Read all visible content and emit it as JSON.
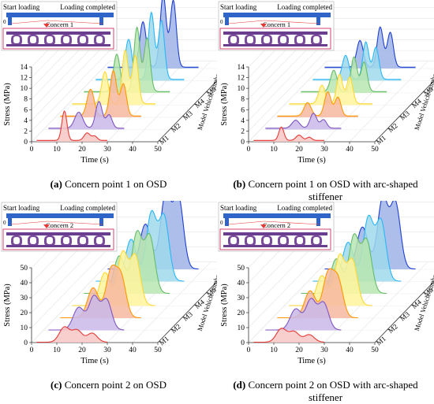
{
  "figure": {
    "inset": {
      "start_label": "Start loading",
      "end_label": "Loading completed",
      "origin_label": "0"
    },
    "x_label": "Time (s)",
    "y_label": "Stress (MPa)",
    "depth_label": "Model Vehicle number",
    "vehicles": [
      "M1",
      "M2",
      "M3",
      "M4",
      "M5",
      "M6",
      "M7"
    ],
    "vehicle_colors": [
      "#e53935",
      "#7e57c2",
      "#ff9800",
      "#fdd835",
      "#66bb6a",
      "#29b6f6",
      "#1e3fd0"
    ],
    "vehicle_fill_colors": [
      "#f8c7c4",
      "#c9b8e8",
      "#f7b9a0",
      "#fff59d",
      "#b8e6b0",
      "#9fd9ec",
      "#9fb3e8"
    ]
  },
  "chart_data": [
    {
      "id": "a",
      "type": "area",
      "caption_tag": "(a)",
      "caption_text": " Concern point 1 on OSD",
      "concern_label": "Concern 1",
      "xlim": [
        0,
        50
      ],
      "xticks": [
        0,
        10,
        20,
        30,
        40,
        50
      ],
      "ylim": [
        0,
        14
      ],
      "yticks": [
        0,
        2,
        4,
        6,
        8,
        10,
        12,
        14
      ],
      "series": [
        {
          "name": "M1",
          "peaks": [
            [
              13,
              5.5,
              1.0
            ],
            [
              22,
              1.4,
              1.2
            ],
            [
              25,
              0.8,
              1.0
            ]
          ],
          "duration": 30
        },
        {
          "name": "M2",
          "peaks": [
            [
              14,
              3.0,
              1.6
            ],
            [
              22,
              5.0,
              1.3
            ],
            [
              26,
              2.5,
              1.2
            ]
          ],
          "duration": 32
        },
        {
          "name": "M3",
          "peaks": [
            [
              14,
              5.0,
              1.4
            ],
            [
              23,
              8.5,
              1.3
            ],
            [
              27,
              6.0,
              1.2
            ]
          ],
          "duration": 34
        },
        {
          "name": "M4",
          "peaks": [
            [
              15,
              6.0,
              1.3
            ],
            [
              23,
              10.0,
              1.2
            ],
            [
              27,
              9.0,
              1.2
            ]
          ],
          "duration": 35
        },
        {
          "name": "M5",
          "peaks": [
            [
              15,
              7.0,
              1.3
            ],
            [
              23,
              12.0,
              1.2
            ],
            [
              27,
              10.0,
              1.2
            ]
          ],
          "duration": 36
        },
        {
          "name": "M6",
          "peaks": [
            [
              15,
              7.5,
              1.3
            ],
            [
              24,
              12.5,
              1.2
            ],
            [
              28,
              11.0,
              1.2
            ]
          ],
          "duration": 37
        },
        {
          "name": "M7",
          "peaks": [
            [
              16,
              8.5,
              1.3
            ],
            [
              24,
              13.5,
              1.2
            ],
            [
              28,
              12.5,
              1.2
            ]
          ],
          "duration": 38
        }
      ]
    },
    {
      "id": "b",
      "type": "area",
      "caption_tag": "(b)",
      "caption_text": " Concern point 1 on OSD with arc-shaped",
      "caption_line2": "stiffener",
      "concern_label": "Concern 1",
      "xlim": [
        0,
        50
      ],
      "xticks": [
        0,
        10,
        20,
        30,
        40,
        50
      ],
      "ylim": [
        0,
        14
      ],
      "yticks": [
        0,
        2,
        4,
        6,
        8,
        10,
        12,
        14
      ],
      "series": [
        {
          "name": "M1",
          "peaks": [
            [
              13,
              2.5,
              1.0
            ],
            [
              20,
              1.0,
              1.2
            ],
            [
              24,
              0.6,
              1.0
            ]
          ],
          "duration": 30
        },
        {
          "name": "M2",
          "peaks": [
            [
              14,
              1.5,
              1.5
            ],
            [
              21,
              2.8,
              1.3
            ],
            [
              25,
              1.6,
              1.2
            ]
          ],
          "duration": 32
        },
        {
          "name": "M3",
          "peaks": [
            [
              14,
              2.5,
              1.4
            ],
            [
              22,
              4.5,
              1.3
            ],
            [
              26,
              3.5,
              1.2
            ]
          ],
          "duration": 34
        },
        {
          "name": "M4",
          "peaks": [
            [
              15,
              3.5,
              1.3
            ],
            [
              22,
              5.5,
              1.2
            ],
            [
              26,
              5.0,
              1.2
            ]
          ],
          "duration": 35
        },
        {
          "name": "M5",
          "peaks": [
            [
              15,
              4.0,
              1.3
            ],
            [
              23,
              6.5,
              1.2
            ],
            [
              27,
              5.5,
              1.2
            ]
          ],
          "duration": 36
        },
        {
          "name": "M6",
          "peaks": [
            [
              15,
              4.5,
              1.3
            ],
            [
              23,
              7.0,
              1.2
            ],
            [
              27,
              6.0,
              1.2
            ]
          ],
          "duration": 37
        },
        {
          "name": "M7",
          "peaks": [
            [
              16,
              5.0,
              1.3
            ],
            [
              24,
              7.5,
              1.2
            ],
            [
              28,
              6.5,
              1.2
            ]
          ],
          "duration": 38
        }
      ]
    },
    {
      "id": "c",
      "type": "area",
      "caption_tag": "(c)",
      "caption_text": " Concern point 2 on OSD",
      "concern_label": "Concern 2",
      "xlim": [
        0,
        50
      ],
      "xticks": [
        0,
        10,
        20,
        30,
        40,
        50
      ],
      "ylim": [
        0,
        50
      ],
      "yticks": [
        0,
        10,
        20,
        30,
        40,
        50
      ],
      "series": [
        {
          "name": "M1",
          "peaks": [
            [
              13,
              10,
              2.0
            ],
            [
              18,
              8,
              2.0
            ],
            [
              24,
              6,
              2.0
            ]
          ],
          "duration": 30
        },
        {
          "name": "M2",
          "peaks": [
            [
              14,
              15,
              2.2
            ],
            [
              20,
              22,
              2.0
            ],
            [
              25,
              20,
              2.0
            ]
          ],
          "duration": 32
        },
        {
          "name": "M3",
          "peaks": [
            [
              15,
              20,
              2.2
            ],
            [
              22,
              30,
              2.0
            ],
            [
              26,
              27,
              2.0
            ]
          ],
          "duration": 34
        },
        {
          "name": "M4",
          "peaks": [
            [
              15,
              22,
              2.2
            ],
            [
              22,
              35,
              2.0
            ],
            [
              27,
              33,
              2.0
            ]
          ],
          "duration": 35
        },
        {
          "name": "M5",
          "peaks": [
            [
              16,
              25,
              2.2
            ],
            [
              23,
              40,
              2.0
            ],
            [
              28,
              38,
              2.0
            ]
          ],
          "duration": 36
        },
        {
          "name": "M6",
          "peaks": [
            [
              16,
              28,
              2.2
            ],
            [
              24,
              45,
              2.0
            ],
            [
              29,
              43,
              2.0
            ]
          ],
          "duration": 37
        },
        {
          "name": "M7",
          "peaks": [
            [
              17,
              30,
              2.2
            ],
            [
              25,
              50,
              2.0
            ],
            [
              30,
              48,
              2.0
            ]
          ],
          "duration": 38
        }
      ]
    },
    {
      "id": "d",
      "type": "area",
      "caption_tag": "(d)",
      "caption_text": " Concern point 2 on OSD with arc-shaped",
      "caption_line2": "stiffener",
      "concern_label": "Concern 2",
      "xlim": [
        0,
        50
      ],
      "xticks": [
        0,
        10,
        20,
        30,
        40,
        50
      ],
      "ylim": [
        0,
        50
      ],
      "yticks": [
        0,
        10,
        20,
        30,
        40,
        50
      ],
      "series": [
        {
          "name": "M1",
          "peaks": [
            [
              13,
              9,
              2.0
            ],
            [
              18,
              7,
              2.0
            ],
            [
              24,
              5,
              2.0
            ]
          ],
          "duration": 30
        },
        {
          "name": "M2",
          "peaks": [
            [
              14,
              14,
              2.2
            ],
            [
              20,
              20,
              2.0
            ],
            [
              25,
              18,
              2.0
            ]
          ],
          "duration": 32
        },
        {
          "name": "M3",
          "peaks": [
            [
              15,
              18,
              2.2
            ],
            [
              22,
              28,
              2.0
            ],
            [
              26,
              25,
              2.0
            ]
          ],
          "duration": 34
        },
        {
          "name": "M4",
          "peaks": [
            [
              15,
              20,
              2.2
            ],
            [
              22,
              33,
              2.0
            ],
            [
              27,
              30,
              2.0
            ]
          ],
          "duration": 35
        },
        {
          "name": "M5",
          "peaks": [
            [
              16,
              23,
              2.2
            ],
            [
              23,
              38,
              2.0
            ],
            [
              28,
              35,
              2.0
            ]
          ],
          "duration": 36
        },
        {
          "name": "M6",
          "peaks": [
            [
              16,
              26,
              2.2
            ],
            [
              24,
              42,
              2.0
            ],
            [
              29,
              40,
              2.0
            ]
          ],
          "duration": 37
        },
        {
          "name": "M7",
          "peaks": [
            [
              17,
              28,
              2.2
            ],
            [
              25,
              47,
              2.0
            ],
            [
              30,
              44,
              2.0
            ]
          ],
          "duration": 38
        }
      ]
    }
  ]
}
